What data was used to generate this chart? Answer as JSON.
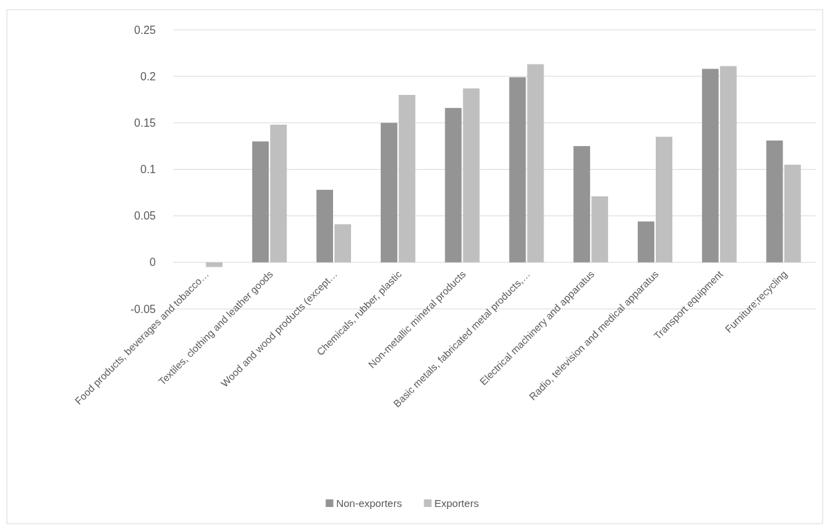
{
  "chart_data": {
    "type": "bar",
    "categories": [
      "Food products, beverages and tobacco…",
      "Textiles, clothing and leather goods",
      "Wood and wood products (except…",
      "Chemicals, rubber, plastic",
      "Non-metallic mineral products",
      "Basic metals, fabricated metal products,…",
      "Electrical machinery and apparatus",
      "Radio, television and medical apparatus",
      "Transport equipment",
      "Furniture;recycling"
    ],
    "series": [
      {
        "name": "Non-exporters",
        "color": "#949494",
        "values": [
          0,
          0.13,
          0.078,
          0.15,
          0.166,
          0.199,
          0.125,
          0.044,
          0.208,
          0.131
        ]
      },
      {
        "name": "Exporters",
        "color": "#bfbfbf",
        "values": [
          -0.005,
          0.148,
          0.041,
          0.18,
          0.187,
          0.213,
          0.071,
          0.135,
          0.211,
          0.105
        ]
      }
    ],
    "ylim": [
      -0.05,
      0.25
    ],
    "yticks": [
      -0.05,
      0,
      0.05,
      0.1,
      0.15,
      0.2,
      0.25
    ],
    "grid": "y",
    "legend": "bottom"
  }
}
